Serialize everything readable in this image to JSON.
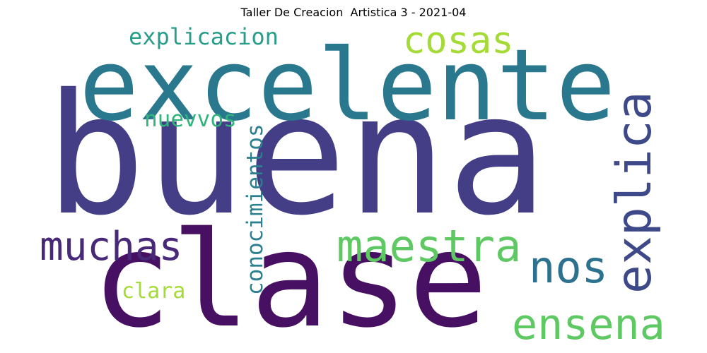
{
  "title": "Taller De Creacion  Artistica 3 - 2021-04",
  "words": [
    {
      "text": "buena",
      "color": "#433e85",
      "orientation": "horizontal"
    },
    {
      "text": "excelente",
      "color": "#2a788e",
      "orientation": "horizontal"
    },
    {
      "text": "clase",
      "color": "#471063",
      "orientation": "horizontal"
    },
    {
      "text": "explica",
      "color": "#3e4989",
      "orientation": "vertical"
    },
    {
      "text": "maestra",
      "color": "#5ec962",
      "orientation": "horizontal"
    },
    {
      "text": "ensena",
      "color": "#5ec962",
      "orientation": "horizontal"
    },
    {
      "text": "muchas",
      "color": "#482878",
      "orientation": "horizontal"
    },
    {
      "text": "nos",
      "color": "#2c728e",
      "orientation": "horizontal"
    },
    {
      "text": "cosas",
      "color": "#a5db36",
      "orientation": "horizontal"
    },
    {
      "text": "explicacion",
      "color": "#2a9d8a",
      "orientation": "horizontal"
    },
    {
      "text": "conocimientos",
      "color": "#2c7f8e",
      "orientation": "vertical"
    },
    {
      "text": "nuevvos",
      "color": "#2fb47c",
      "orientation": "horizontal"
    },
    {
      "text": "clara",
      "color": "#a5db36",
      "orientation": "horizontal"
    }
  ]
}
